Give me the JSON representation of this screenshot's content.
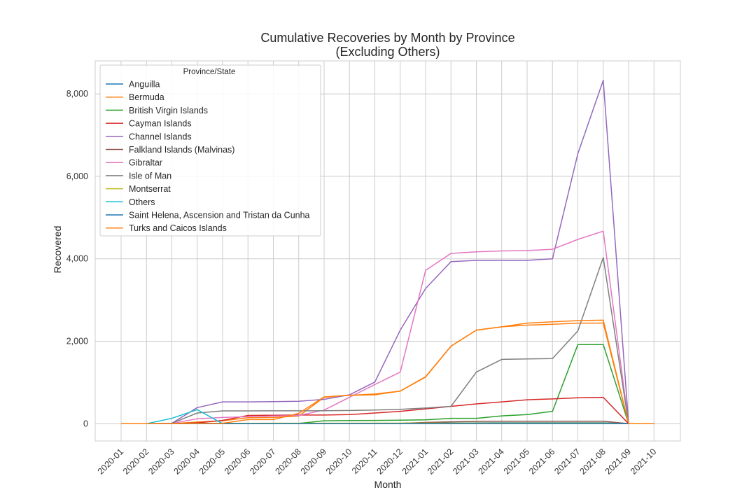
{
  "chart_data": {
    "type": "line",
    "title": "Cumulative Recoveries by Month by Province",
    "subtitle": "(Excluding Others)",
    "xlabel": "Month",
    "ylabel": "Recovered",
    "legend_title": "Province/State",
    "legend_position": "top-left",
    "grid": true,
    "ylim": [
      -420,
      8800
    ],
    "yticks": [
      0,
      2000,
      4000,
      6000,
      8000
    ],
    "ytick_labels": [
      "0",
      "2,000",
      "4,000",
      "6,000",
      "8,000"
    ],
    "categories": [
      "2020-01",
      "2020-02",
      "2020-03",
      "2020-04",
      "2020-05",
      "2020-06",
      "2020-07",
      "2020-08",
      "2020-09",
      "2020-10",
      "2020-11",
      "2020-12",
      "2021-01",
      "2021-02",
      "2021-03",
      "2021-04",
      "2021-05",
      "2021-06",
      "2021-07",
      "2021-08",
      "2021-09",
      "2021-10"
    ],
    "series": [
      {
        "name": "Anguilla",
        "color": "#1f77b4",
        "values": [
          0,
          0,
          0,
          0,
          3,
          3,
          3,
          3,
          3,
          3,
          3,
          10,
          15,
          18,
          20,
          22,
          22,
          22,
          22,
          22,
          0,
          0
        ]
      },
      {
        "name": "Bermuda",
        "color": "#ff7f0e",
        "values": [
          0,
          0,
          0,
          40,
          70,
          145,
          150,
          185,
          640,
          690,
          720,
          790,
          1130,
          1880,
          2270,
          2350,
          2390,
          2410,
          2440,
          2440,
          0,
          0
        ]
      },
      {
        "name": "British Virgin Islands",
        "color": "#2ca02c",
        "values": [
          0,
          0,
          0,
          3,
          5,
          6,
          6,
          6,
          70,
          75,
          80,
          85,
          95,
          130,
          130,
          190,
          220,
          300,
          1920,
          1920,
          0,
          0
        ]
      },
      {
        "name": "Cayman Islands",
        "color": "#d62728",
        "values": [
          0,
          0,
          0,
          20,
          80,
          200,
          205,
          210,
          210,
          220,
          260,
          300,
          360,
          420,
          480,
          530,
          580,
          600,
          630,
          640,
          0,
          0
        ]
      },
      {
        "name": "Channel Islands",
        "color": "#9467bd",
        "values": [
          0,
          0,
          10,
          390,
          530,
          530,
          535,
          545,
          590,
          700,
          1010,
          2270,
          3280,
          3930,
          3960,
          3960,
          3960,
          4000,
          6550,
          8330,
          0,
          0
        ]
      },
      {
        "name": "Falkland Islands (Malvinas)",
        "color": "#8c564b",
        "values": [
          0,
          0,
          0,
          0,
          3,
          10,
          10,
          10,
          10,
          10,
          10,
          10,
          30,
          45,
          55,
          60,
          60,
          60,
          60,
          60,
          0,
          0
        ]
      },
      {
        "name": "Gibraltar",
        "color": "#e377c2",
        "values": [
          0,
          0,
          5,
          120,
          150,
          170,
          185,
          200,
          330,
          640,
          950,
          1250,
          3720,
          4130,
          4170,
          4190,
          4200,
          4230,
          4470,
          4670,
          0,
          0
        ]
      },
      {
        "name": "Isle of Man",
        "color": "#7f7f7f",
        "values": [
          0,
          0,
          10,
          260,
          310,
          310,
          312,
          312,
          315,
          320,
          330,
          350,
          380,
          420,
          1250,
          1560,
          1570,
          1580,
          2250,
          4030,
          0,
          0
        ]
      },
      {
        "name": "Montserrat",
        "color": "#bcbd22",
        "values": [
          0,
          0,
          0,
          3,
          6,
          10,
          12,
          12,
          12,
          12,
          13,
          13,
          13,
          13,
          13,
          13,
          13,
          13,
          13,
          13,
          0,
          0
        ]
      },
      {
        "name": "Others",
        "color": "#17becf",
        "values": [
          0,
          0,
          130,
          340,
          0,
          0,
          0,
          0,
          0,
          0,
          0,
          0,
          0,
          0,
          0,
          0,
          0,
          0,
          0,
          0,
          0,
          0
        ]
      },
      {
        "name": "Saint Helena, Ascension and Tristan da Cunha",
        "color": "#1f77b4",
        "values": [
          0,
          0,
          0,
          0,
          0,
          0,
          0,
          0,
          0,
          0,
          0,
          0,
          0,
          0,
          0,
          0,
          0,
          0,
          0,
          0,
          0,
          0
        ]
      },
      {
        "name": "Turks and Caicos Islands",
        "color": "#ff7f0e",
        "values": [
          0,
          0,
          0,
          10,
          10,
          100,
          100,
          250,
          650,
          690,
          700,
          790,
          1140,
          1880,
          2270,
          2350,
          2440,
          2470,
          2500,
          2510,
          0,
          0
        ]
      }
    ]
  }
}
